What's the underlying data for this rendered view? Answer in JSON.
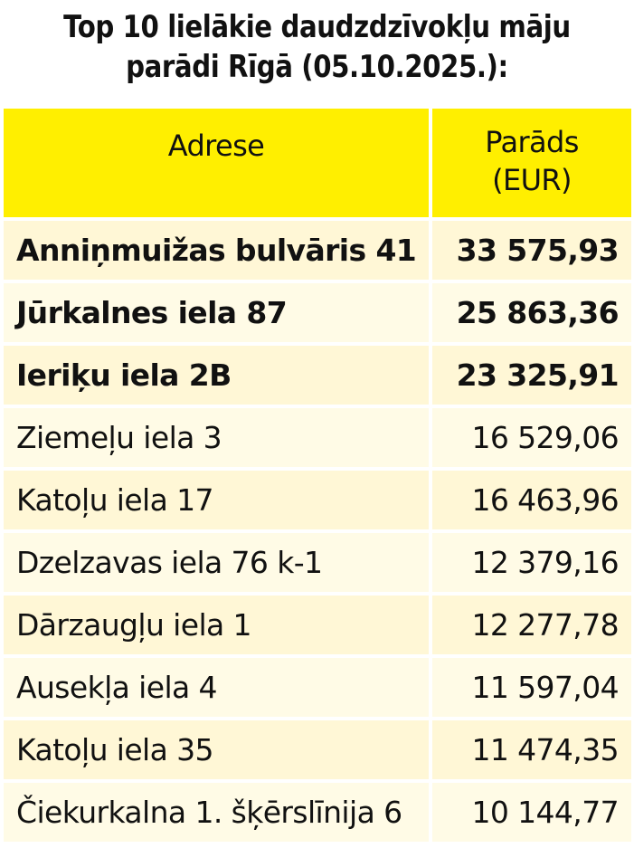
{
  "title_line1": "Top 10 lielākie daudzdzīvokļu māju",
  "title_line2": "parādi Rīgā (05.10.2025.):",
  "colors": {
    "header_bg": "#ffef00",
    "row_light": "#fffbe6",
    "row_cream": "#fff7d6",
    "text": "#111111"
  },
  "chart_data": {
    "type": "table",
    "columns": [
      "Adrese",
      "Parāds (EUR)"
    ],
    "header": {
      "address": "Adrese",
      "debt_line1": "Parāds",
      "debt_line2": "(EUR)"
    },
    "rows": [
      {
        "address": "Anniņmuižas bulvāris 41",
        "debt": "33 575,93",
        "value": 33575.93,
        "bold": true
      },
      {
        "address": "Jūrkalnes iela 87",
        "debt": "25 863,36",
        "value": 25863.36,
        "bold": true
      },
      {
        "address": "Ieriķu iela 2B",
        "debt": "23 325,91",
        "value": 23325.91,
        "bold": true
      },
      {
        "address": "Ziemeļu iela 3",
        "debt": "16 529,06",
        "value": 16529.06,
        "bold": false
      },
      {
        "address": "Katoļu iela 17",
        "debt": "16 463,96",
        "value": 16463.96,
        "bold": false
      },
      {
        "address": "Dzelzavas iela 76 k-1",
        "debt": "12 379,16",
        "value": 12379.16,
        "bold": false
      },
      {
        "address": "Dārzaugļu iela 1",
        "debt": "12 277,78",
        "value": 12277.78,
        "bold": false
      },
      {
        "address": "Ausekļa iela 4",
        "debt": "11 597,04",
        "value": 11597.04,
        "bold": false
      },
      {
        "address": "Katoļu iela 35",
        "debt": "11 474,35",
        "value": 11474.35,
        "bold": false
      },
      {
        "address": "Čiekurkalna 1. šķērslīnija 6",
        "debt": "10 144,77",
        "value": 10144.77,
        "bold": false
      }
    ]
  }
}
